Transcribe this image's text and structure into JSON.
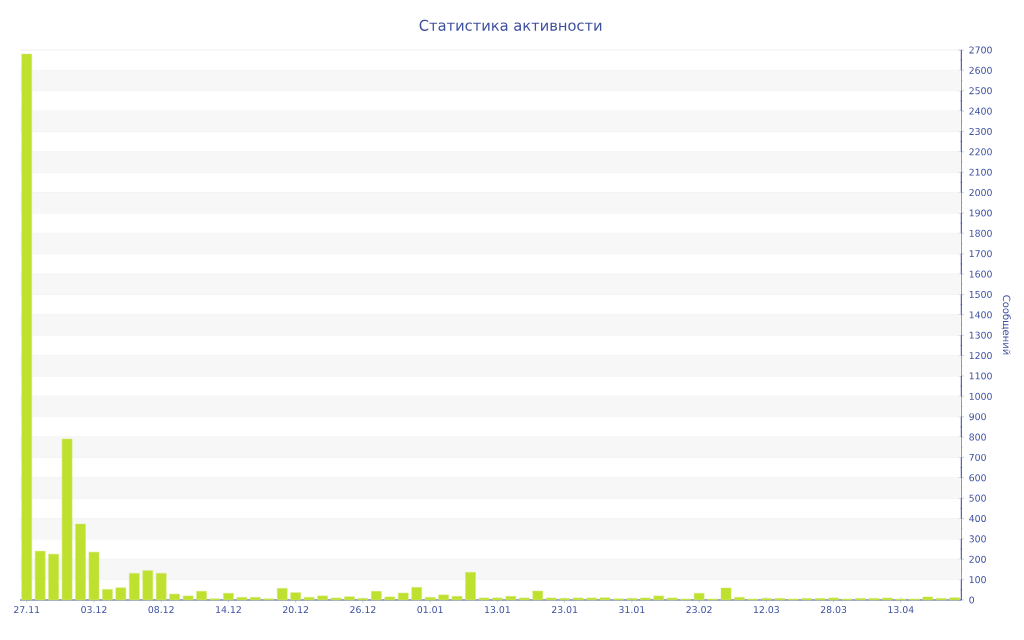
{
  "chart_data": {
    "type": "bar",
    "title": "Статистика активности",
    "ylabel": "Сообщений",
    "categories": [
      "27.11",
      null,
      null,
      null,
      null,
      "03.12",
      null,
      null,
      null,
      null,
      "08.12",
      null,
      null,
      null,
      null,
      "14.12",
      null,
      null,
      null,
      null,
      "20.12",
      null,
      null,
      null,
      null,
      "26.12",
      null,
      null,
      null,
      null,
      "01.01",
      null,
      null,
      null,
      null,
      "13.01",
      null,
      null,
      null,
      null,
      "23.01",
      null,
      null,
      null,
      null,
      "31.01",
      null,
      null,
      null,
      null,
      "23.02",
      null,
      null,
      null,
      null,
      "12.03",
      null,
      null,
      null,
      null,
      "28.03",
      null,
      null,
      null,
      null,
      "13.04",
      null,
      null,
      null,
      null
    ],
    "values": [
      2680,
      240,
      225,
      790,
      373,
      235,
      52,
      60,
      131,
      144,
      131,
      29,
      20,
      43,
      6,
      33,
      13,
      13,
      6,
      57,
      36,
      13,
      20,
      10,
      16,
      8,
      43,
      15,
      34,
      62,
      13,
      25,
      18,
      136,
      10,
      10,
      18,
      10,
      44,
      10,
      8,
      10,
      10,
      11,
      6,
      8,
      10,
      20,
      10,
      5,
      33,
      5,
      59,
      13,
      5,
      8,
      8,
      5,
      8,
      8,
      10,
      5,
      8,
      8,
      10,
      5,
      5,
      15,
      8,
      11
    ],
    "color": "#bee02e",
    "ylim": [
      0,
      2700
    ],
    "yticks": [
      0,
      100,
      200,
      300,
      400,
      500,
      600,
      700,
      800,
      900,
      1000,
      1100,
      1200,
      1300,
      1400,
      1500,
      1600,
      1700,
      1800,
      1900,
      2000,
      2100,
      2200,
      2300,
      2400,
      2500,
      2600,
      2700
    ],
    "grid": "y"
  }
}
